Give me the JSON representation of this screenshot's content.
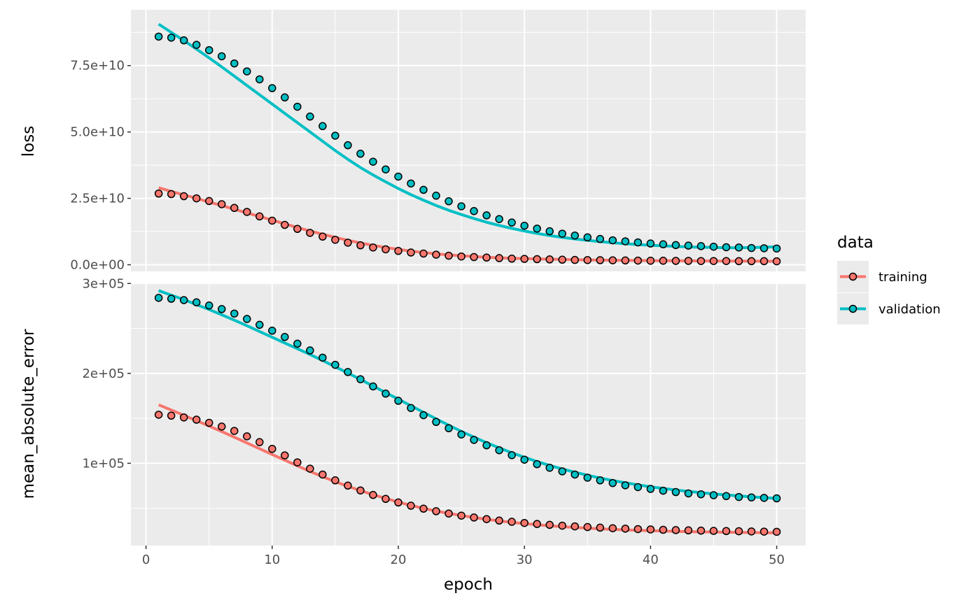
{
  "chart_data": {
    "type": "scatter",
    "xlabel": "epoch",
    "x_ticks": [
      "0",
      "10",
      "20",
      "30",
      "40",
      "50"
    ],
    "xlim": [
      -1.2,
      52.3
    ],
    "legend": {
      "title": "data",
      "position": "right",
      "entries": [
        "training",
        "validation"
      ]
    },
    "colors": {
      "training": "#F8766D",
      "validation": "#00BFC4",
      "panel": "#EBEBEB",
      "grid": "#FFFFFF",
      "point_outline": "#000000"
    },
    "grid": true,
    "panels": [
      {
        "ylabel": "loss",
        "ylim": [
          -2500000000.0,
          96000000000.0
        ],
        "y_tick_values": [
          0,
          25000000000,
          50000000000,
          75000000000
        ],
        "y_ticks": [
          "0.0e+00",
          "2.5e+10",
          "5.0e+10",
          "7.5e+10"
        ],
        "series": [
          {
            "name": "training",
            "points": [
              26800000000.0,
              26600000000.0,
              25800000000.0,
              25000000000.0,
              24000000000.0,
              22800000000.0,
              21400000000.0,
              19900000000.0,
              18200000000.0,
              16600000000.0,
              15000000000.0,
              13500000000.0,
              12000000000.0,
              10600000000.0,
              9400000000.0,
              8300000000.0,
              7300000000.0,
              6500000000.0,
              5800000000.0,
              5200000000.0,
              4600000000.0,
              4200000000.0,
              3800000000.0,
              3400000000.0,
              3100000000.0,
              2900000000.0,
              2700000000.0,
              2500000000.0,
              2300000000.0,
              2200000000.0,
              2100000000.0,
              2000000000.0,
              1900000000.0,
              1800000000.0,
              1750000000.0,
              1700000000.0,
              1650000000.0,
              1600000000.0,
              1550000000.0,
              1500000000.0,
              1500000000.0,
              1450000000.0,
              1450000000.0,
              1400000000.0,
              1400000000.0,
              1400000000.0,
              1350000000.0,
              1350000000.0,
              1350000000.0,
              1300000000.0
            ],
            "smooth": [
              29000000000.0,
              27600000000.0,
              26300000000.0,
              25000000000.0,
              23600000000.0,
              22300000000.0,
              20900000000.0,
              19500000000.0,
              18200000000.0,
              16800000000.0,
              15400000000.0,
              14000000000.0,
              12700000000.0,
              11500000000.0,
              10300000000.0,
              9200000000.0,
              8200000000.0,
              7300000000.0,
              6500000000.0,
              5800000000.0,
              5100000000.0,
              4600000000.0,
              4100000000.0,
              3700000000.0,
              3400000000.0,
              3100000000.0,
              2800000000.0,
              2600000000.0,
              2450000000.0,
              2300000000.0,
              2200000000.0,
              2100000000.0,
              2000000000.0,
              1900000000.0,
              1800000000.0,
              1750000000.0,
              1700000000.0,
              1650000000.0,
              1600000000.0,
              1550000000.0,
              1500000000.0,
              1500000000.0,
              1450000000.0,
              1450000000.0,
              1400000000.0,
              1400000000.0,
              1400000000.0,
              1350000000.0,
              1350000000.0,
              1300000000.0
            ]
          },
          {
            "name": "validation",
            "points": [
              85900000000.0,
              85500000000.0,
              84500000000.0,
              82800000000.0,
              80800000000.0,
              78500000000.0,
              75800000000.0,
              72800000000.0,
              69800000000.0,
              66500000000.0,
              63000000000.0,
              59500000000.0,
              55800000000.0,
              52200000000.0,
              48600000000.0,
              45000000000.0,
              41800000000.0,
              38800000000.0,
              35900000000.0,
              33200000000.0,
              30600000000.0,
              28200000000.0,
              26000000000.0,
              23900000000.0,
              22000000000.0,
              20200000000.0,
              18600000000.0,
              17200000000.0,
              15900000000.0,
              14700000000.0,
              13600000000.0,
              12600000000.0,
              11700000000.0,
              11000000000.0,
              10300000000.0,
              9700000000.0,
              9200000000.0,
              8800000000.0,
              8400000000.0,
              8000000000.0,
              7700000000.0,
              7400000000.0,
              7200000000.0,
              7000000000.0,
              6800000000.0,
              6600000000.0,
              6500000000.0,
              6300000000.0,
              6200000000.0,
              6100000000.0
            ],
            "smooth": [
              90600000000.0,
              87500000000.0,
              84400000000.0,
              81200000000.0,
              77900000000.0,
              74500000000.0,
              71000000000.0,
              67500000000.0,
              64000000000.0,
              60500000000.0,
              57000000000.0,
              53500000000.0,
              50000000000.0,
              46500000000.0,
              43000000000.0,
              39700000000.0,
              36600000000.0,
              33800000000.0,
              31200000000.0,
              28700000000.0,
              26400000000.0,
              24300000000.0,
              22300000000.0,
              20500000000.0,
              18900000000.0,
              17400000000.0,
              16000000000.0,
              14800000000.0,
              13700000000.0,
              12700000000.0,
              11800000000.0,
              11000000000.0,
              10300000000.0,
              9700000000.0,
              9200000000.0,
              8700000000.0,
              8300000000.0,
              7900000000.0,
              7600000000.0,
              7300000000.0,
              7100000000.0,
              6900000000.0,
              6700000000.0,
              6600000000.0,
              6500000000.0,
              6400000000.0,
              6400000000.0,
              6500000000.0,
              6600000000.0,
              6800000000.0
            ]
          }
        ]
      },
      {
        "ylabel": "mean_absolute_error",
        "ylim": [
          8500,
          301000
        ],
        "y_tick_values": [
          100000,
          200000,
          300000
        ],
        "y_ticks": [
          "1e+05",
          "2e+05",
          "3e+05"
        ],
        "series": [
          {
            "name": "training",
            "points": [
              154000,
              153000,
              151000,
              148500,
              145000,
              140800,
              136000,
              130000,
              123500,
              116000,
              108800,
              101000,
              94000,
              87500,
              81000,
              75200,
              69800,
              64800,
              60400,
              56400,
              52800,
              49500,
              46700,
              44100,
              41800,
              39700,
              37900,
              36300,
              34900,
              33600,
              32500,
              31500,
              30600,
              29800,
              29100,
              28400,
              27800,
              27300,
              26800,
              26400,
              26000,
              25700,
              25400,
              25100,
              24800,
              24600,
              24400,
              24200,
              24000,
              23800
            ],
            "smooth": [
              165000,
              159200,
              153300,
              147400,
              141400,
              135300,
              129000,
              122600,
              116200,
              109800,
              103500,
              97100,
              90900,
              85100,
              79600,
              74400,
              69600,
              65100,
              60900,
              56900,
              53200,
              49900,
              46900,
              44300,
              41900,
              39700,
              37700,
              35900,
              34300,
              32900,
              31600,
              30500,
              29500,
              28600,
              27800,
              27100,
              26500,
              25900,
              25400,
              25000,
              24600,
              24300,
              24000,
              23700,
              23500,
              23300,
              23100,
              23000,
              22800,
              22600
            ]
          },
          {
            "name": "validation",
            "points": [
              284000,
              283000,
              281500,
              279000,
              275500,
              271500,
              266500,
              260500,
              254000,
              247500,
              240500,
              233000,
              225500,
              217500,
              209500,
              201500,
              193500,
              185500,
              177500,
              169500,
              161500,
              153500,
              146000,
              139000,
              132000,
              126000,
              120000,
              114500,
              109000,
              104000,
              99000,
              95000,
              91000,
              87500,
              84000,
              81000,
              78000,
              75500,
              73500,
              71500,
              69500,
              68000,
              66500,
              65500,
              64500,
              63500,
              62500,
              62000,
              61500,
              61000
            ],
            "smooth": [
              292000,
              287000,
              282000,
              276500,
              271000,
              265200,
              259200,
              253000,
              246600,
              240200,
              233800,
              227400,
              221000,
              214300,
              207400,
              200400,
              193200,
              185900,
              178600,
              171300,
              164000,
              156700,
              149400,
              142300,
              135500,
              129000,
              122900,
              117100,
              111700,
              106600,
              101900,
              97600,
              93600,
              90000,
              86700,
              83600,
              80800,
              78300,
              76000,
              73900,
              72000,
              70300,
              68700,
              67300,
              66000,
              64800,
              63700,
              62700,
              61800,
              61000
            ]
          }
        ]
      }
    ]
  }
}
